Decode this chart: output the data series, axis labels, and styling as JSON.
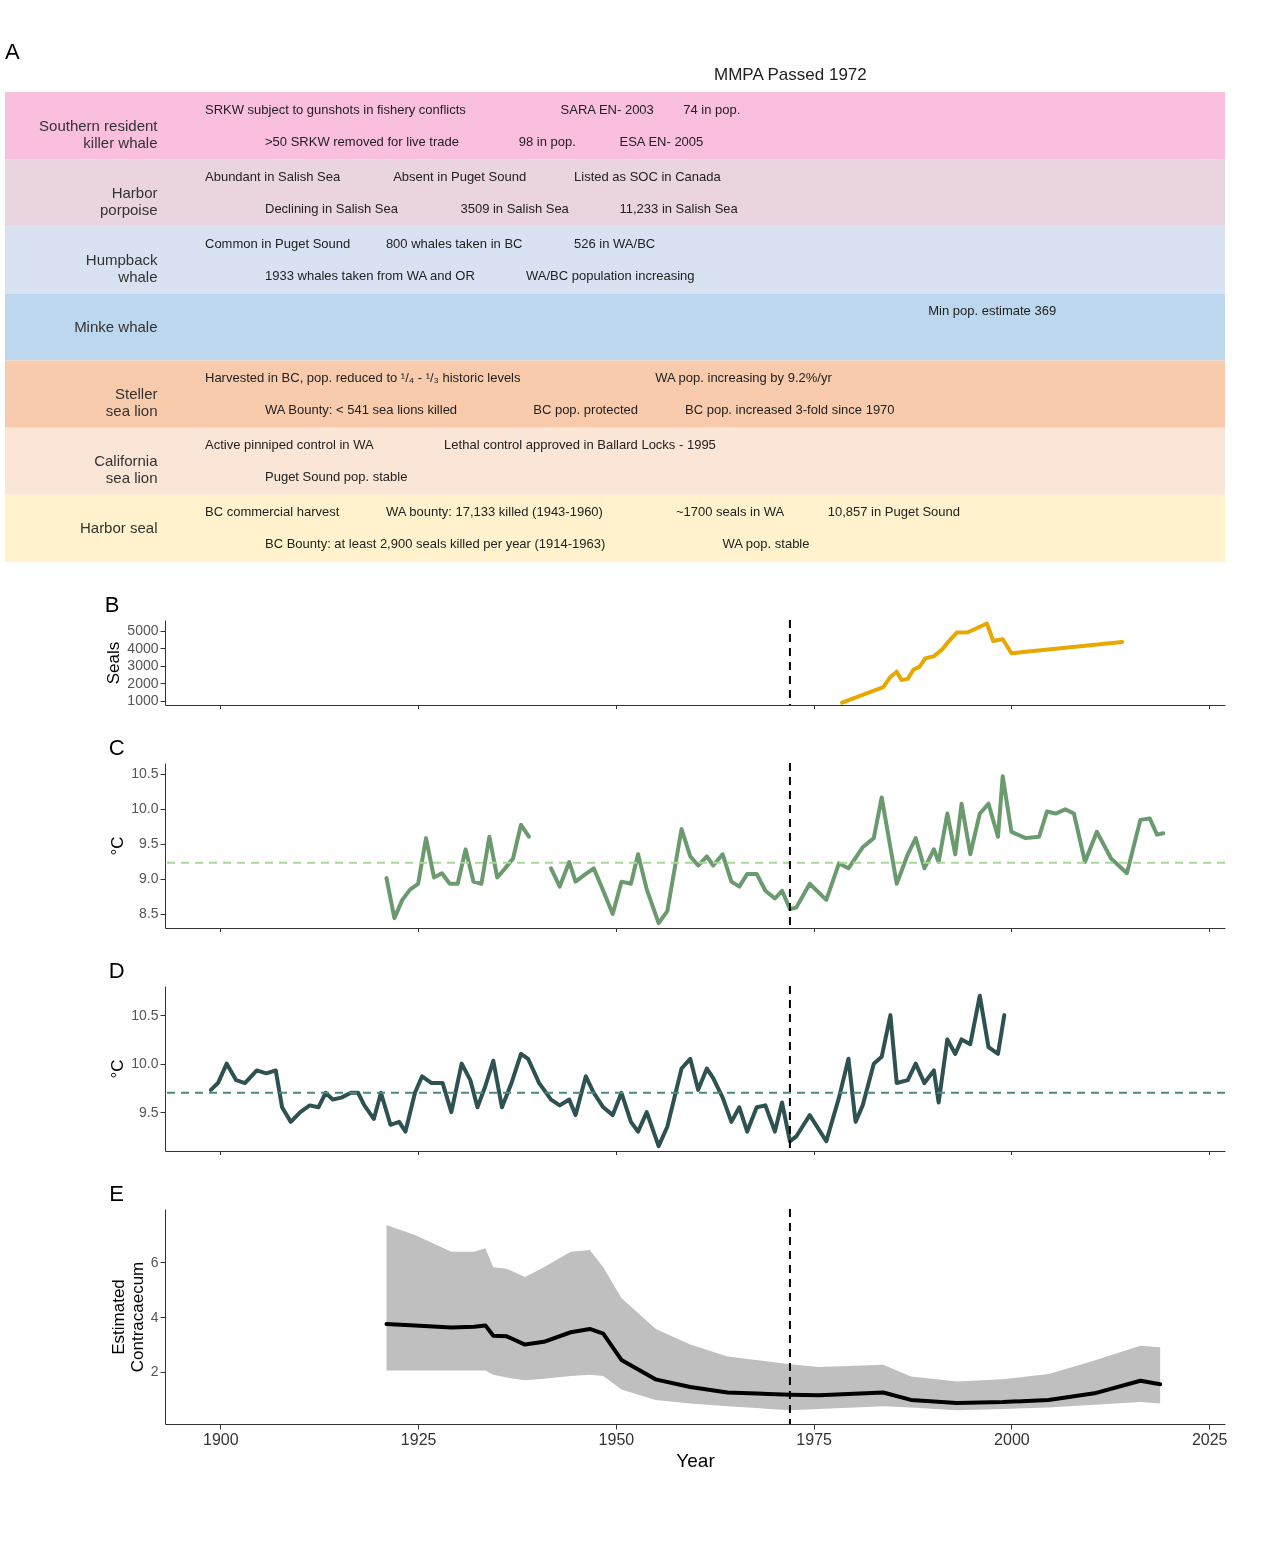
{
  "chart_data": [
    {
      "type": "other",
      "title": "A",
      "categories": [
        "Southern resident killer whale",
        "Harbor porpoise",
        "Humpback whale",
        "Minke whale",
        "Steller sea lion",
        "California sea lion",
        "Harbor seal"
      ],
      "colors": [
        "#f9bfdc",
        "#ead4df",
        "#d9e2f3",
        "#bdd7ee",
        "#f8cbad",
        "#fbe5d6",
        "#fff2cc"
      ],
      "annotations": [
        "MMPA Passed 1972",
        {
          "text": "SRKW subject to gunshots in fishery conflicts",
          "y": "Southern resident killer whale"
        },
        {
          "text": ">50 SRKW removed for live trade",
          "y": "Southern resident killer whale"
        },
        {
          "text": "98 in pop.",
          "y": "Southern resident killer whale"
        },
        {
          "text": "SARA EN- 2003",
          "y": "Southern resident killer whale"
        },
        {
          "text": "ESA EN- 2005",
          "y": "Southern resident killer whale"
        },
        {
          "text": "74 in pop.",
          "y": "Southern resident killer whale"
        },
        {
          "text": "Abundant in Salish Sea",
          "y": "Harbor porpoise"
        },
        {
          "text": "Declining in Salish Sea",
          "y": "Harbor porpoise"
        },
        {
          "text": "Absent in Puget Sound",
          "y": "Harbor porpoise"
        },
        {
          "text": "3509 in Salish Sea",
          "y": "Harbor porpoise"
        },
        {
          "text": "Listed as SOC in Canada",
          "y": "Harbor porpoise"
        },
        {
          "text": "11,233 in Salish Sea",
          "y": "Harbor porpoise"
        },
        {
          "text": "Common in Puget Sound",
          "y": "Humpback whale"
        },
        {
          "text": "1933 whales taken from WA and OR",
          "y": "Humpback whale"
        },
        {
          "text": "800 whales taken in BC",
          "y": "Humpback whale"
        },
        {
          "text": "WA/BC population increasing",
          "y": "Humpback whale"
        },
        {
          "text": "526 in WA/BC",
          "y": "Humpback whale"
        },
        {
          "text": "Min pop. estimate 369",
          "y": "Minke whale"
        },
        {
          "text": "Harvested in BC, pop. reduced to ¹/₄ - ¹/₃ historic levels",
          "y": "Steller sea lion"
        },
        {
          "text": "WA Bounty: < 541 sea lions killed",
          "y": "Steller sea lion"
        },
        {
          "text": "BC pop. protected",
          "y": "Steller sea lion"
        },
        {
          "text": "WA pop. increasing by 9.2%/yr",
          "y": "Steller sea lion"
        },
        {
          "text": "BC pop. increased 3-fold since 1970",
          "y": "Steller sea lion"
        },
        {
          "text": "Active pinniped control in WA",
          "y": "California sea lion"
        },
        {
          "text": "Puget Sound pop. stable",
          "y": "California sea lion"
        },
        {
          "text": "Lethal control approved in Ballard Locks - 1995",
          "y": "California sea lion"
        },
        {
          "text": "BC commercial harvest",
          "y": "Harbor seal"
        },
        {
          "text": "BC Bounty: at least 2,900 seals killed per year (1914-1963)",
          "y": "Harbor seal"
        },
        {
          "text": "WA bounty: 17,133 killed (1943-1960)",
          "y": "Harbor seal"
        },
        {
          "text": "~1700 seals in WA",
          "y": "Harbor seal"
        },
        {
          "text": "WA pop. stable",
          "y": "Harbor seal"
        },
        {
          "text": "10,857 in Puget Sound",
          "y": "Harbor seal"
        }
      ]
    },
    {
      "type": "line",
      "title": "B",
      "ylabel": "Seals",
      "xlim": [
        1893,
        2027
      ],
      "xticks": [
        1900,
        1925,
        1950,
        1975,
        2000,
        2025
      ],
      "ylim": [
        750,
        5600
      ],
      "yticks": [
        1000,
        2000,
        3000,
        4000,
        5000
      ],
      "tick_labels": "y",
      "series": [
        {
          "color": "#e8a800",
          "x": [
            1978.6,
            1983.8,
            1984.7,
            1985.5,
            1986.1,
            1986.9,
            1987.6,
            1988.4,
            1989.1,
            1990.2,
            1991.3,
            1991.9,
            1993.1,
            1994.5,
            1996.9,
            1997.7,
            1998.9,
            2000.0,
            2014.0
          ],
          "values": [
            880,
            1770,
            2350,
            2650,
            2180,
            2240,
            2760,
            2940,
            3410,
            3530,
            3940,
            4290,
            4880,
            4900,
            5400,
            4400,
            4500,
            3700,
            4350
          ]
        }
      ],
      "ref_lines": [
        {
          "axis": "x",
          "value": 1972,
          "color": "#000000",
          "line_style": "dashed"
        }
      ]
    },
    {
      "type": "line",
      "title": "C",
      "ylabel": "°C",
      "xlim": [
        1893,
        2027
      ],
      "xticks": [
        1900,
        1925,
        1950,
        1975,
        2000,
        2025
      ],
      "ylim": [
        8.3,
        10.65
      ],
      "yticks": [
        {
          "value": 8.5,
          "label": "8.5"
        },
        {
          "value": 9,
          "label": "9.0"
        },
        {
          "value": 9.5,
          "label": "9.5"
        },
        {
          "value": 10,
          "label": "10.0"
        },
        {
          "value": 10.5,
          "label": "10.5"
        }
      ],
      "tick_labels": "y",
      "series": [
        {
          "color": "#6a9a6e",
          "x": [
            1921,
            1922,
            1923,
            1924,
            1925,
            1926,
            1927,
            1928,
            1929,
            1930,
            1931,
            1932,
            1933,
            1934,
            1935,
            1936,
            1937,
            1938,
            1939,
            1940.5,
            1941.8,
            1942.9,
            1944.1,
            1944.9,
            1946.2,
            1947.2,
            1948.4,
            1949.6,
            1950.7,
            1951.9,
            1952.8,
            1953.9,
            1955.4,
            1956.5,
            1958.3,
            1959.4,
            1960.4,
            1961.5,
            1962.3,
            1963.5,
            1964.6,
            1965.6,
            1966.6,
            1967.8,
            1968.9,
            1970.1,
            1971.0,
            1972.0,
            1972.8,
            1974.5,
            1976.6,
            1978.2,
            1979.4,
            1981.2,
            1982.6,
            1983.6,
            1984.7,
            1985.5,
            1986.9,
            1987.9,
            1989.0,
            1990.2,
            1990.8,
            1991.9,
            1992.9,
            1993.7,
            1994.8,
            1996.0,
            1997.1,
            1998.3,
            1998.9,
            2000.0,
            2001.8,
            2003.5,
            2004.5,
            2005.6,
            2006.8,
            2007.9,
            2009.3,
            2010.8,
            2012.6,
            2014.6,
            2016.3,
            2017.5,
            2018.4,
            2019.2
          ],
          "values": [
            9.01,
            8.44,
            8.7,
            8.85,
            8.93,
            9.58,
            9.02,
            9.08,
            8.93,
            8.93,
            9.42,
            8.96,
            8.93,
            9.6,
            9.02,
            9.15,
            9.29,
            9.77,
            9.6,
            null,
            9.15,
            8.89,
            9.24,
            8.96,
            9.07,
            9.15,
            8.83,
            8.5,
            8.96,
            8.93,
            9.35,
            8.85,
            8.37,
            8.54,
            9.71,
            9.32,
            9.19,
            9.32,
            9.19,
            9.35,
            8.96,
            8.89,
            9.07,
            9.07,
            8.83,
            8.72,
            8.83,
            8.57,
            8.59,
            8.93,
            8.7,
            9.22,
            9.15,
            9.45,
            9.58,
            10.16,
            9.45,
            8.93,
            9.35,
            9.58,
            9.15,
            9.42,
            9.24,
            9.93,
            9.35,
            10.07,
            9.35,
            9.93,
            10.07,
            9.6,
            10.46,
            9.67,
            9.58,
            9.6,
            9.96,
            9.93,
            9.99,
            9.93,
            9.24,
            9.67,
            9.29,
            9.08,
            9.84,
            9.86,
            9.63,
            9.65
          ]
        }
      ],
      "ref_lines": [
        {
          "axis": "y",
          "value": 9.23,
          "color": "#a8d89a",
          "line_style": "dashed"
        },
        {
          "axis": "x",
          "value": 1972,
          "color": "#000000",
          "line_style": "dashed"
        }
      ]
    },
    {
      "type": "line",
      "title": "D",
      "ylabel": "°C",
      "xlim": [
        1893,
        2027
      ],
      "xticks": [
        1900,
        1925,
        1950,
        1975,
        2000,
        2025
      ],
      "ylim": [
        9.1,
        10.8
      ],
      "yticks": [
        9.5,
        {
          "value": 10,
          "label": "10.0"
        },
        10.5
      ],
      "tick_labels": "y",
      "series": [
        {
          "color": "#2e5252",
          "x": [
            1898.8,
            1899.7,
            1900.8,
            1902.0,
            1903.1,
            1904.6,
            1905.8,
            1907.0,
            1907.8,
            1908.9,
            1910.1,
            1911.3,
            1912.4,
            1913.3,
            1914.2,
            1915.3,
            1916.5,
            1917.4,
            1918.2,
            1919.4,
            1920.3,
            1921.5,
            1922.6,
            1923.4,
            1924.6,
            1925.5,
            1926.7,
            1928.1,
            1929.2,
            1930.5,
            1931.6,
            1932.5,
            1933.5,
            1934.5,
            1935.6,
            1936.8,
            1938.0,
            1938.9,
            1940.3,
            1941.8,
            1942.9,
            1944.1,
            1944.9,
            1946.2,
            1947.2,
            1948.4,
            1949.6,
            1950.7,
            1951.9,
            1952.8,
            1953.9,
            1955.4,
            1956.5,
            1958.3,
            1959.4,
            1960.4,
            1961.5,
            1962.3,
            1963.5,
            1964.6,
            1965.6,
            1966.6,
            1967.8,
            1968.9,
            1970.1,
            1971.0,
            1972.0,
            1972.8,
            1974.5,
            1976.6,
            1978.2,
            1979.4,
            1980.3,
            1981.2,
            1982.6,
            1983.6,
            1984.7,
            1985.5,
            1986.9,
            1987.9,
            1989.0,
            1990.2,
            1990.8,
            1991.9,
            1992.9,
            1993.7,
            1994.8,
            1996.0,
            1997.1,
            1998.3,
            1999.1
          ],
          "values": [
            9.73,
            9.8,
            10.0,
            9.83,
            9.8,
            9.93,
            9.9,
            9.93,
            9.55,
            9.4,
            9.5,
            9.57,
            9.55,
            9.7,
            9.63,
            9.65,
            9.7,
            9.7,
            9.57,
            9.43,
            9.7,
            9.37,
            9.4,
            9.3,
            9.7,
            9.87,
            9.8,
            9.8,
            9.5,
            10.0,
            9.83,
            9.55,
            9.77,
            10.03,
            9.55,
            9.8,
            10.1,
            10.05,
            9.8,
            9.63,
            9.57,
            9.63,
            9.47,
            9.87,
            9.7,
            9.55,
            9.47,
            9.7,
            9.4,
            9.3,
            9.5,
            9.15,
            9.35,
            9.95,
            10.05,
            9.73,
            9.95,
            9.85,
            9.65,
            9.4,
            9.55,
            9.3,
            9.55,
            9.57,
            9.3,
            9.6,
            9.2,
            9.25,
            9.47,
            9.2,
            9.65,
            10.05,
            9.4,
            9.57,
            10.0,
            10.07,
            10.5,
            9.8,
            9.83,
            10.0,
            9.8,
            9.93,
            9.6,
            10.25,
            10.1,
            10.25,
            10.2,
            10.7,
            10.17,
            10.1,
            10.5
          ]
        }
      ],
      "ref_lines": [
        {
          "axis": "y",
          "value": 9.7,
          "color": "#4a8a80",
          "line_style": "dashed"
        },
        {
          "axis": "x",
          "value": 1972,
          "color": "#000000",
          "line_style": "dashed"
        }
      ]
    },
    {
      "type": "line",
      "title": "E",
      "xlabel": "Year",
      "ylabel": "Estimated Contracaecum",
      "xlim": [
        1893,
        2027
      ],
      "xticks": [
        1900,
        1925,
        1950,
        1975,
        2000,
        2025
      ],
      "ylim": [
        0.1,
        7.95
      ],
      "yticks": [
        2,
        4,
        6
      ],
      "series": [
        {
          "color": "#000000",
          "x": [
            1921,
            1924.6,
            1929.2,
            1932.1,
            1933.5,
            1934.5,
            1936.2,
            1938.5,
            1940.9,
            1944.3,
            1946.7,
            1948.4,
            1950.7,
            1955.0,
            1959.4,
            1964.1,
            1972.0,
            1975.7,
            1983.8,
            1987.3,
            1993.1,
            1998.9,
            2004.7,
            2010.5,
            2016.3,
            2018.8
          ],
          "values": [
            3.75,
            3.7,
            3.62,
            3.65,
            3.7,
            3.32,
            3.3,
            3.0,
            3.1,
            3.45,
            3.57,
            3.4,
            2.44,
            1.73,
            1.45,
            1.25,
            1.17,
            1.15,
            1.25,
            0.98,
            0.87,
            0.9,
            0.98,
            1.22,
            1.68,
            1.55
          ],
          "lower": [
            2.05,
            2.05,
            2.05,
            2.05,
            2.05,
            1.9,
            1.8,
            1.7,
            1.75,
            1.85,
            1.9,
            1.85,
            1.36,
            0.98,
            0.85,
            0.75,
            0.6,
            0.65,
            0.75,
            0.7,
            0.6,
            0.65,
            0.7,
            0.8,
            0.9,
            0.85
          ],
          "upper": [
            7.37,
            7.0,
            6.39,
            6.39,
            6.52,
            5.82,
            5.77,
            5.47,
            5.82,
            6.39,
            6.45,
            5.82,
            4.7,
            3.58,
            3.0,
            2.56,
            2.28,
            2.18,
            2.26,
            1.83,
            1.65,
            1.73,
            1.93,
            2.42,
            2.96,
            2.9
          ]
        }
      ],
      "ref_lines": [
        {
          "axis": "x",
          "value": 1972,
          "color": "#000000",
          "line_style": "dashed"
        }
      ]
    }
  ]
}
